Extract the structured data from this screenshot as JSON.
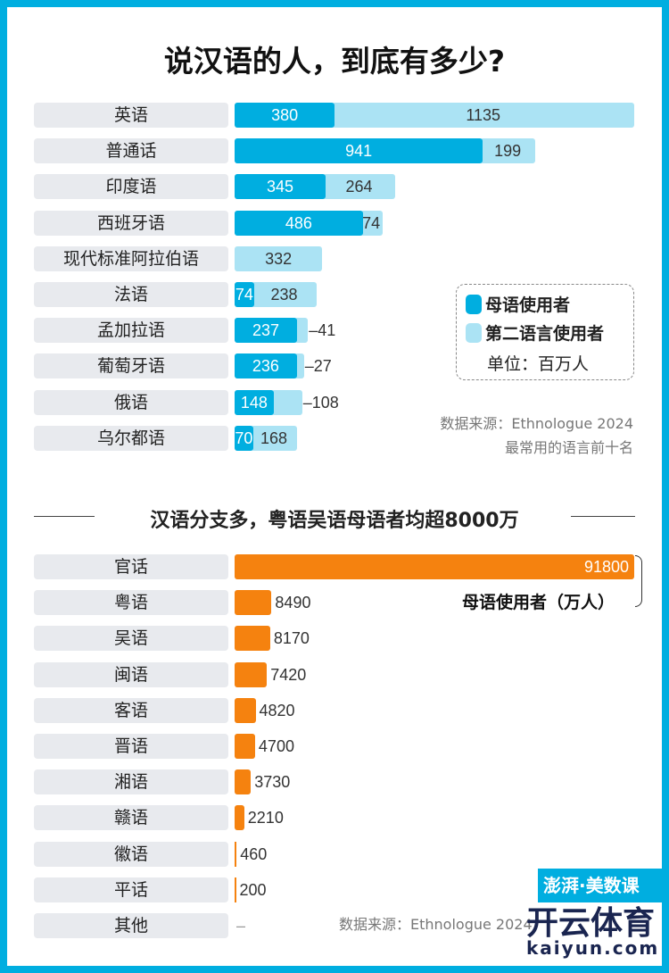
{
  "title": "说汉语的人，到底有多少?",
  "colors": {
    "native": "#00aee0",
    "second": "#abe3f4",
    "chinese": "#f5820f",
    "frame": "#00aee0"
  },
  "chart_data": [
    {
      "type": "bar",
      "orientation": "horizontal",
      "stacked": true,
      "categories": [
        "英语",
        "普通话",
        "印度语",
        "西班牙语",
        "现代标准阿拉伯语",
        "法语",
        "孟加拉语",
        "葡萄牙语",
        "俄语",
        "乌尔都语"
      ],
      "series": [
        {
          "name": "母语使用者",
          "values": [
            380,
            941,
            345,
            486,
            0,
            74,
            237,
            236,
            148,
            70
          ]
        },
        {
          "name": "第二语言使用者",
          "values": [
            1135,
            199,
            264,
            74,
            332,
            238,
            41,
            27,
            108,
            168
          ]
        }
      ],
      "unit": "单位：百万人",
      "legend_position": "right",
      "source": "数据来源：Ethnologue 2024",
      "note": "最常用的语言前十名"
    },
    {
      "type": "bar",
      "orientation": "horizontal",
      "title": "汉语分支多，粤语吴语母语者均超8000万",
      "categories": [
        "官话",
        "粤语",
        "吴语",
        "闽语",
        "客语",
        "晋语",
        "湘语",
        "赣语",
        "徽语",
        "平话",
        "其他"
      ],
      "values": [
        91800,
        8490,
        8170,
        7420,
        4820,
        4700,
        3730,
        2210,
        460,
        200,
        null
      ],
      "value_labels": [
        "91800",
        "8490",
        "8170",
        "7420",
        "4820",
        "4700",
        "3730",
        "2210",
        "460",
        "200",
        "–"
      ],
      "annotation": "母语使用者（万人）",
      "source": "数据来源：Ethnologue 2024"
    }
  ],
  "watermark": {
    "brand": "澎湃·美数课",
    "overlay": "开云体育",
    "overlay_url": "kaiyun.com"
  }
}
